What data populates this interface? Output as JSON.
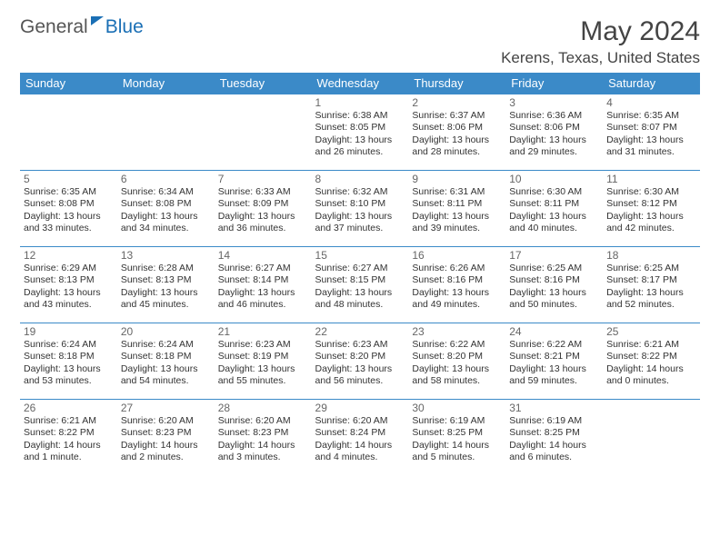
{
  "logo": {
    "part1": "General",
    "part2": "Blue"
  },
  "title": "May 2024",
  "location": "Kerens, Texas, United States",
  "colors": {
    "header_bg": "#3b8ac8",
    "header_text": "#ffffff",
    "row_border": "#3b8ac8",
    "title_text": "#444444",
    "logo_gray": "#555555",
    "logo_blue": "#1a6fb5"
  },
  "calendar": {
    "type": "table",
    "day_headers": [
      "Sunday",
      "Monday",
      "Tuesday",
      "Wednesday",
      "Thursday",
      "Friday",
      "Saturday"
    ],
    "weeks": [
      [
        null,
        null,
        null,
        {
          "day": "1",
          "sunrise": "6:38 AM",
          "sunset": "8:05 PM",
          "daylight": "13 hours and 26 minutes."
        },
        {
          "day": "2",
          "sunrise": "6:37 AM",
          "sunset": "8:06 PM",
          "daylight": "13 hours and 28 minutes."
        },
        {
          "day": "3",
          "sunrise": "6:36 AM",
          "sunset": "8:06 PM",
          "daylight": "13 hours and 29 minutes."
        },
        {
          "day": "4",
          "sunrise": "6:35 AM",
          "sunset": "8:07 PM",
          "daylight": "13 hours and 31 minutes."
        }
      ],
      [
        {
          "day": "5",
          "sunrise": "6:35 AM",
          "sunset": "8:08 PM",
          "daylight": "13 hours and 33 minutes."
        },
        {
          "day": "6",
          "sunrise": "6:34 AM",
          "sunset": "8:08 PM",
          "daylight": "13 hours and 34 minutes."
        },
        {
          "day": "7",
          "sunrise": "6:33 AM",
          "sunset": "8:09 PM",
          "daylight": "13 hours and 36 minutes."
        },
        {
          "day": "8",
          "sunrise": "6:32 AM",
          "sunset": "8:10 PM",
          "daylight": "13 hours and 37 minutes."
        },
        {
          "day": "9",
          "sunrise": "6:31 AM",
          "sunset": "8:11 PM",
          "daylight": "13 hours and 39 minutes."
        },
        {
          "day": "10",
          "sunrise": "6:30 AM",
          "sunset": "8:11 PM",
          "daylight": "13 hours and 40 minutes."
        },
        {
          "day": "11",
          "sunrise": "6:30 AM",
          "sunset": "8:12 PM",
          "daylight": "13 hours and 42 minutes."
        }
      ],
      [
        {
          "day": "12",
          "sunrise": "6:29 AM",
          "sunset": "8:13 PM",
          "daylight": "13 hours and 43 minutes."
        },
        {
          "day": "13",
          "sunrise": "6:28 AM",
          "sunset": "8:13 PM",
          "daylight": "13 hours and 45 minutes."
        },
        {
          "day": "14",
          "sunrise": "6:27 AM",
          "sunset": "8:14 PM",
          "daylight": "13 hours and 46 minutes."
        },
        {
          "day": "15",
          "sunrise": "6:27 AM",
          "sunset": "8:15 PM",
          "daylight": "13 hours and 48 minutes."
        },
        {
          "day": "16",
          "sunrise": "6:26 AM",
          "sunset": "8:16 PM",
          "daylight": "13 hours and 49 minutes."
        },
        {
          "day": "17",
          "sunrise": "6:25 AM",
          "sunset": "8:16 PM",
          "daylight": "13 hours and 50 minutes."
        },
        {
          "day": "18",
          "sunrise": "6:25 AM",
          "sunset": "8:17 PM",
          "daylight": "13 hours and 52 minutes."
        }
      ],
      [
        {
          "day": "19",
          "sunrise": "6:24 AM",
          "sunset": "8:18 PM",
          "daylight": "13 hours and 53 minutes."
        },
        {
          "day": "20",
          "sunrise": "6:24 AM",
          "sunset": "8:18 PM",
          "daylight": "13 hours and 54 minutes."
        },
        {
          "day": "21",
          "sunrise": "6:23 AM",
          "sunset": "8:19 PM",
          "daylight": "13 hours and 55 minutes."
        },
        {
          "day": "22",
          "sunrise": "6:23 AM",
          "sunset": "8:20 PM",
          "daylight": "13 hours and 56 minutes."
        },
        {
          "day": "23",
          "sunrise": "6:22 AM",
          "sunset": "8:20 PM",
          "daylight": "13 hours and 58 minutes."
        },
        {
          "day": "24",
          "sunrise": "6:22 AM",
          "sunset": "8:21 PM",
          "daylight": "13 hours and 59 minutes."
        },
        {
          "day": "25",
          "sunrise": "6:21 AM",
          "sunset": "8:22 PM",
          "daylight": "14 hours and 0 minutes."
        }
      ],
      [
        {
          "day": "26",
          "sunrise": "6:21 AM",
          "sunset": "8:22 PM",
          "daylight": "14 hours and 1 minute."
        },
        {
          "day": "27",
          "sunrise": "6:20 AM",
          "sunset": "8:23 PM",
          "daylight": "14 hours and 2 minutes."
        },
        {
          "day": "28",
          "sunrise": "6:20 AM",
          "sunset": "8:23 PM",
          "daylight": "14 hours and 3 minutes."
        },
        {
          "day": "29",
          "sunrise": "6:20 AM",
          "sunset": "8:24 PM",
          "daylight": "14 hours and 4 minutes."
        },
        {
          "day": "30",
          "sunrise": "6:19 AM",
          "sunset": "8:25 PM",
          "daylight": "14 hours and 5 minutes."
        },
        {
          "day": "31",
          "sunrise": "6:19 AM",
          "sunset": "8:25 PM",
          "daylight": "14 hours and 6 minutes."
        },
        null
      ]
    ],
    "labels": {
      "sunrise": "Sunrise: ",
      "sunset": "Sunset: ",
      "daylight": "Daylight: "
    }
  }
}
